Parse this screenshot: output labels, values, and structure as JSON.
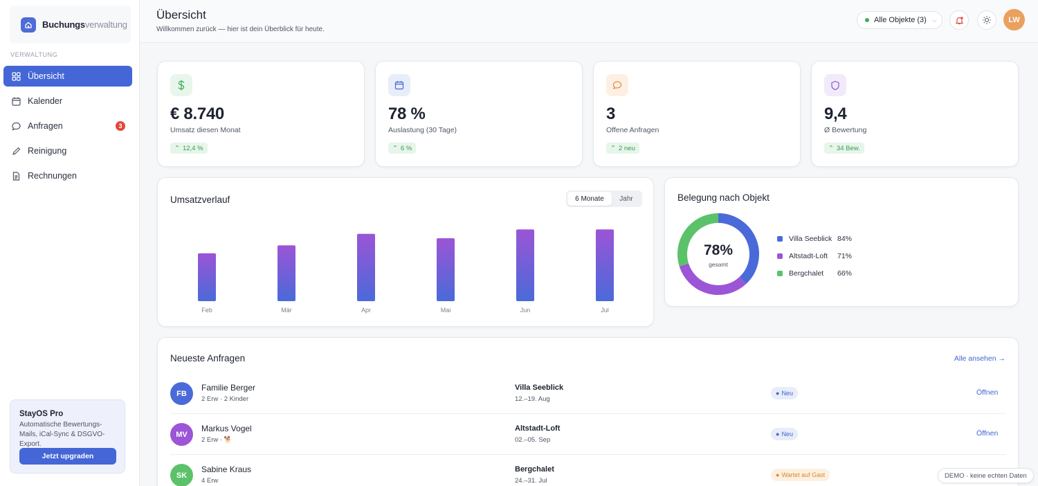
{
  "brand": {
    "name_bold": "Buchungs",
    "name_light": "verwaltung",
    "icon": "home-icon"
  },
  "sidebar": {
    "section_label": "VERWALTUNG",
    "items": [
      {
        "label": "Übersicht",
        "icon": "grid-icon",
        "active": true
      },
      {
        "label": "Kalender",
        "icon": "calendar-icon",
        "active": false
      },
      {
        "label": "Anfragen",
        "icon": "chat-icon",
        "active": false,
        "badge": "3"
      },
      {
        "label": "Reinigung",
        "icon": "brush-icon",
        "active": false
      },
      {
        "label": "Rechnungen",
        "icon": "document-icon",
        "active": false
      }
    ],
    "promo": {
      "title": "StayOS Pro",
      "text": "Automatische Bewertungs-Mails, iCal-Sync & DSGVO-Export.",
      "button": "Jetzt upgraden"
    }
  },
  "header": {
    "title": "Übersicht",
    "subtitle": "Willkommen zurück — hier ist dein Überblick für heute.",
    "object_select": "Alle Objekte (3)",
    "avatar": "LW"
  },
  "stats": [
    {
      "value": "€ 8.740",
      "label": "Umsatz diesen Monat",
      "trend": "12,4 %",
      "icon": "dollar-icon",
      "color": "#3fae5a",
      "bg": "#e8f6ec"
    },
    {
      "value": "78 %",
      "label": "Auslastung (30 Tage)",
      "trend": "6 %",
      "icon": "calendar-icon",
      "color": "#4466d6",
      "bg": "#e8edfa"
    },
    {
      "value": "3",
      "label": "Offene Anfragen",
      "trend": "2 neu",
      "icon": "chat-icon",
      "color": "#e08a3c",
      "bg": "#fdf0e3"
    },
    {
      "value": "9,4",
      "label": "Ø Bewertung",
      "trend": "34 Bew.",
      "icon": "shield-icon",
      "color": "#8a55d3",
      "bg": "#f1eafb"
    }
  ],
  "revenue": {
    "title": "Umsatzverlauf",
    "tabs": [
      "6 Monate",
      "Jahr"
    ],
    "active_tab": "6 Monate"
  },
  "chart_data": [
    {
      "type": "bar",
      "categories": [
        "Feb",
        "Mär",
        "Apr",
        "Mai",
        "Jun",
        "Jul"
      ],
      "values": [
        5400,
        6300,
        7600,
        7100,
        8100,
        8100
      ],
      "ylim": [
        0,
        10000
      ],
      "grid": false,
      "colors": {
        "top": "#9b55d6",
        "bottom": "#4a6ad9"
      }
    },
    {
      "type": "pie",
      "title": "Belegung nach Objekt",
      "center_value": "78%",
      "center_label": "gesamt",
      "labels": [
        "Villa Seeblick",
        "Altstadt-Loft",
        "Bergchalet"
      ],
      "values": [
        84,
        71,
        66
      ],
      "value_labels": [
        "84%",
        "71%",
        "66%"
      ],
      "colors": [
        "#4a6ad9",
        "#9b55d6",
        "#5cc26a"
      ]
    }
  ],
  "requests": {
    "title": "Neueste Anfragen",
    "view_all": "Alle ansehen →",
    "rows": [
      {
        "initials": "FB",
        "avatar_color": "#4a6ad9",
        "name": "Familie Berger",
        "meta": "2 Erw · 2 Kinder",
        "property": "Villa Seeblick",
        "dates": "12.–19. Aug",
        "status": "Neu",
        "status_kind": "neu",
        "action": "Öffnen"
      },
      {
        "initials": "MV",
        "avatar_color": "#9b55d6",
        "name": "Markus Vogel",
        "meta": "2 Erw · 🐕",
        "property": "Altstadt-Loft",
        "dates": "02.–05. Sep",
        "status": "Neu",
        "status_kind": "neu",
        "action": "Öffnen"
      },
      {
        "initials": "SK",
        "avatar_color": "#5cc26a",
        "name": "Sabine Kraus",
        "meta": "4 Erw",
        "property": "Bergchalet",
        "dates": "24.–31. Jul",
        "status": "Wartet auf Gast",
        "status_kind": "wait",
        "action": ""
      }
    ]
  },
  "demo_notice": "DEMO · keine echten Daten"
}
